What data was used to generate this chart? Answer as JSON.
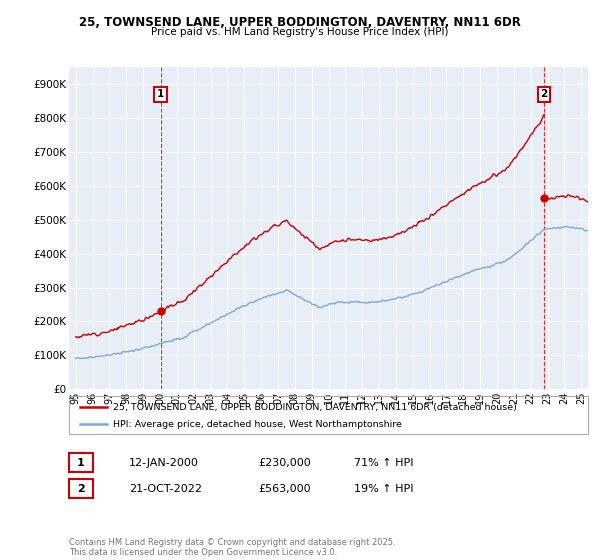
{
  "title1": "25, TOWNSEND LANE, UPPER BODDINGTON, DAVENTRY, NN11 6DR",
  "title2": "Price paid vs. HM Land Registry's House Price Index (HPI)",
  "bg_color": "#ffffff",
  "plot_bg_color": "#e8eef8",
  "grid_color": "#ffffff",
  "red_color": "#cc0000",
  "blue_color": "#7aaadd",
  "legend1": "25, TOWNSEND LANE, UPPER BODDINGTON, DAVENTRY, NN11 6DR (detached house)",
  "legend2": "HPI: Average price, detached house, West Northamptonshire",
  "footer": "Contains HM Land Registry data © Crown copyright and database right 2025.\nThis data is licensed under the Open Government Licence v3.0.",
  "table_row1": [
    "1",
    "12-JAN-2000",
    "£230,000",
    "71% ↑ HPI"
  ],
  "table_row2": [
    "2",
    "21-OCT-2022",
    "£563,000",
    "19% ↑ HPI"
  ],
  "ylim": [
    0,
    950000
  ],
  "yticks": [
    0,
    100000,
    200000,
    300000,
    400000,
    500000,
    600000,
    700000,
    800000,
    900000
  ],
  "ytick_labels": [
    "£0",
    "£100K",
    "£200K",
    "£300K",
    "£400K",
    "£500K",
    "£600K",
    "£700K",
    "£800K",
    "£900K"
  ],
  "sale1_x": 2000.04,
  "sale1_y": 230000,
  "sale2_x": 2022.8,
  "sale2_y": 563000,
  "xlim_left": 1994.6,
  "xlim_right": 2025.4
}
